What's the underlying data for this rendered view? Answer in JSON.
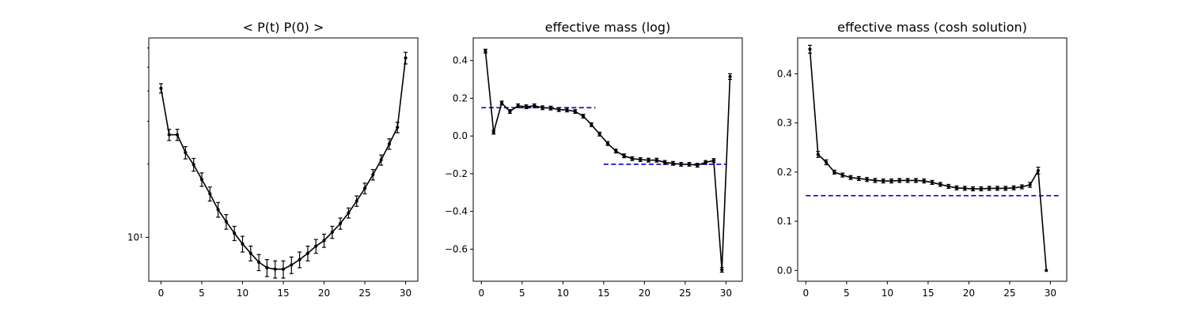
{
  "chart_data": [
    {
      "type": "line",
      "title": "< P(t)  P(0) >",
      "xlabel": "",
      "ylabel": "",
      "yscale": "log",
      "xlim": [
        -1.5,
        31.5
      ],
      "ylim": [
        6.6,
        66
      ],
      "x_ticks": [
        0,
        5,
        10,
        15,
        20,
        25,
        30
      ],
      "x_tick_labels": [
        "0",
        "5",
        "10",
        "15",
        "20",
        "25",
        "30"
      ],
      "y_ticks": [
        10
      ],
      "y_tick_labels": [
        "10¹"
      ],
      "y_minor_ticks": [
        20,
        30,
        40,
        50,
        60
      ],
      "grid": false,
      "series": [
        {
          "color": "#000000",
          "x": [
            0,
            1,
            2,
            3,
            4,
            5,
            6,
            7,
            8,
            9,
            10,
            11,
            12,
            13,
            14,
            15,
            16,
            17,
            18,
            19,
            20,
            21,
            22,
            23,
            24,
            25,
            26,
            27,
            28,
            29,
            30
          ],
          "y": [
            41.0,
            26.4,
            26.4,
            22.3,
            19.9,
            17.3,
            15.1,
            13.0,
            11.6,
            10.4,
            9.4,
            8.6,
            7.9,
            7.5,
            7.4,
            7.4,
            7.7,
            8.1,
            8.6,
            9.2,
            9.7,
            10.5,
            11.4,
            12.6,
            14.1,
            15.9,
            18.1,
            20.8,
            24.2,
            28.3,
            54.6
          ],
          "err": [
            1.8,
            1.4,
            1.4,
            1.3,
            1.2,
            1.1,
            1.0,
            0.9,
            0.8,
            0.7,
            0.7,
            0.6,
            0.6,
            0.6,
            0.6,
            0.6,
            0.6,
            0.6,
            0.6,
            0.6,
            0.6,
            0.6,
            0.6,
            0.6,
            0.7,
            0.8,
            0.9,
            1.0,
            1.2,
            1.4,
            3.0
          ]
        }
      ]
    },
    {
      "type": "line",
      "title": "effective mass (log)",
      "xlabel": "",
      "ylabel": "",
      "xlim": [
        -1.0,
        32.0
      ],
      "ylim": [
        -0.77,
        0.52
      ],
      "x_ticks": [
        0,
        5,
        10,
        15,
        20,
        25,
        30
      ],
      "x_tick_labels": [
        "0",
        "5",
        "10",
        "15",
        "20",
        "25",
        "30"
      ],
      "y_ticks": [
        -0.6,
        -0.4,
        -0.2,
        0.0,
        0.2,
        0.4
      ],
      "y_tick_labels": [
        "−0.6",
        "−0.4",
        "−0.2",
        "0.0",
        "0.2",
        "0.4"
      ],
      "grid": false,
      "series": [
        {
          "color": "#000000",
          "x": [
            0.5,
            1.5,
            2.5,
            3.5,
            4.5,
            5.5,
            6.5,
            7.5,
            8.5,
            9.5,
            10.5,
            11.5,
            12.5,
            13.5,
            14.5,
            15.5,
            16.5,
            17.5,
            18.5,
            19.5,
            20.5,
            21.5,
            22.5,
            23.5,
            24.5,
            25.5,
            26.5,
            27.5,
            28.5,
            29.5,
            30.5
          ],
          "y": [
            0.45,
            0.02,
            0.175,
            0.13,
            0.16,
            0.155,
            0.16,
            0.15,
            0.148,
            0.14,
            0.138,
            0.13,
            0.105,
            0.06,
            0.01,
            -0.04,
            -0.08,
            -0.105,
            -0.12,
            -0.125,
            -0.128,
            -0.128,
            -0.14,
            -0.145,
            -0.15,
            -0.15,
            -0.155,
            -0.14,
            -0.13,
            -0.71,
            0.315
          ],
          "err": [
            0.01,
            0.01,
            0.01,
            0.01,
            0.01,
            0.01,
            0.01,
            0.01,
            0.01,
            0.01,
            0.01,
            0.01,
            0.01,
            0.01,
            0.01,
            0.01,
            0.01,
            0.01,
            0.01,
            0.01,
            0.01,
            0.01,
            0.01,
            0.01,
            0.01,
            0.01,
            0.01,
            0.01,
            0.01,
            0.012,
            0.015
          ]
        }
      ],
      "reference_lines": [
        {
          "color": "#0000cc",
          "dashed": true,
          "x": [
            0,
            14
          ],
          "y": 0.15
        },
        {
          "color": "#0000cc",
          "dashed": true,
          "x": [
            15,
            30
          ],
          "y": -0.15
        }
      ]
    },
    {
      "type": "line",
      "title": "effective mass (cosh solution)",
      "xlabel": "",
      "ylabel": "",
      "xlim": [
        -1.0,
        32.0
      ],
      "ylim": [
        -0.022,
        0.473
      ],
      "x_ticks": [
        0,
        5,
        10,
        15,
        20,
        25,
        30
      ],
      "x_tick_labels": [
        "0",
        "5",
        "10",
        "15",
        "20",
        "25",
        "30"
      ],
      "y_ticks": [
        0.0,
        0.1,
        0.2,
        0.3,
        0.4
      ],
      "y_tick_labels": [
        "0.0",
        "0.1",
        "0.2",
        "0.3",
        "0.4"
      ],
      "grid": false,
      "series": [
        {
          "color": "#000000",
          "x": [
            0.5,
            1.5,
            2.5,
            3.5,
            4.5,
            5.5,
            6.5,
            7.5,
            8.5,
            9.5,
            10.5,
            11.5,
            12.5,
            13.5,
            14.5,
            15.5,
            16.5,
            17.5,
            18.5,
            19.5,
            20.5,
            21.5,
            22.5,
            23.5,
            24.5,
            25.5,
            26.5,
            27.5,
            28.5,
            29.5
          ],
          "y": [
            0.45,
            0.236,
            0.22,
            0.2,
            0.194,
            0.189,
            0.187,
            0.185,
            0.183,
            0.182,
            0.182,
            0.183,
            0.183,
            0.183,
            0.182,
            0.179,
            0.175,
            0.171,
            0.168,
            0.167,
            0.166,
            0.166,
            0.167,
            0.167,
            0.167,
            0.168,
            0.17,
            0.174,
            0.203,
            0.0
          ],
          "err": [
            0.008,
            0.006,
            0.005,
            0.004,
            0.004,
            0.004,
            0.004,
            0.004,
            0.004,
            0.004,
            0.004,
            0.004,
            0.004,
            0.004,
            0.004,
            0.004,
            0.004,
            0.004,
            0.004,
            0.004,
            0.004,
            0.004,
            0.004,
            0.004,
            0.004,
            0.004,
            0.004,
            0.005,
            0.007,
            0.0
          ]
        }
      ],
      "reference_lines": [
        {
          "color": "#0000cc",
          "dashed": true,
          "x": [
            0,
            31
          ],
          "y": 0.152
        }
      ]
    }
  ]
}
